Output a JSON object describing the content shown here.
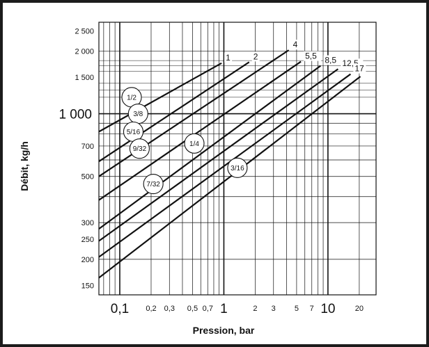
{
  "chart_data": {
    "type": "line",
    "xlabel": "Pression, bar",
    "ylabel": "Débit, kg/h",
    "x_scale": "log",
    "y_scale": "log",
    "xlim": [
      0.063,
      29
    ],
    "ylim": [
      135,
      2750
    ],
    "grid": true,
    "x_ticks": [
      {
        "value": 0.1,
        "label": "0,1",
        "major": true
      },
      {
        "value": 0.2,
        "label": "0,2",
        "major": false
      },
      {
        "value": 0.3,
        "label": "0,3",
        "major": false
      },
      {
        "value": 0.5,
        "label": "0,5",
        "major": false
      },
      {
        "value": 0.7,
        "label": "0,7",
        "major": false
      },
      {
        "value": 1,
        "label": "1",
        "major": true
      },
      {
        "value": 2,
        "label": "2",
        "major": false
      },
      {
        "value": 3,
        "label": "3",
        "major": false
      },
      {
        "value": 5,
        "label": "5",
        "major": false
      },
      {
        "value": 7,
        "label": "7",
        "major": false
      },
      {
        "value": 10,
        "label": "10",
        "major": true
      },
      {
        "value": 20,
        "label": "20",
        "major": false
      }
    ],
    "y_ticks": [
      {
        "value": 150,
        "label": "150",
        "major": false
      },
      {
        "value": 200,
        "label": "200",
        "major": false
      },
      {
        "value": 250,
        "label": "250",
        "major": false
      },
      {
        "value": 300,
        "label": "300",
        "major": false
      },
      {
        "value": 500,
        "label": "500",
        "major": false
      },
      {
        "value": 700,
        "label": "700",
        "major": false
      },
      {
        "value": 1000,
        "label": "1 000",
        "major": true
      },
      {
        "value": 1500,
        "label": "1 500",
        "major": false
      },
      {
        "value": 2000,
        "label": "2 000",
        "major": false
      },
      {
        "value": 2500,
        "label": "2 500",
        "major": false
      }
    ],
    "series": [
      {
        "name": "1",
        "points": [
          [
            0.063,
            820
          ],
          [
            0.95,
            1750
          ]
        ]
      },
      {
        "name": "2",
        "points": [
          [
            0.063,
            590
          ],
          [
            1.75,
            1770
          ]
        ]
      },
      {
        "name": "4",
        "points": [
          [
            0.063,
            500
          ],
          [
            4.2,
            2020
          ]
        ]
      },
      {
        "name": "5,5",
        "points": [
          [
            0.063,
            385
          ],
          [
            5.5,
            1780
          ]
        ]
      },
      {
        "name": "8,5",
        "points": [
          [
            0.063,
            280
          ],
          [
            8.5,
            1700
          ]
        ]
      },
      {
        "name": "12,5",
        "points": [
          [
            0.063,
            245
          ],
          [
            12.5,
            1640
          ]
        ]
      },
      {
        "name": "17",
        "points": [
          [
            0.063,
            205
          ],
          [
            16.5,
            1550
          ]
        ]
      },
      {
        "name": "",
        "points": [
          [
            0.063,
            163
          ],
          [
            20.5,
            1510
          ]
        ]
      }
    ],
    "annotations": [
      {
        "text": "1/2",
        "x": 0.13,
        "y": 1200
      },
      {
        "text": "3/8",
        "x": 0.15,
        "y": 1000
      },
      {
        "text": "5/16",
        "x": 0.135,
        "y": 820
      },
      {
        "text": "9/32",
        "x": 0.155,
        "y": 680
      },
      {
        "text": "1/4",
        "x": 0.52,
        "y": 720
      },
      {
        "text": "7/32",
        "x": 0.21,
        "y": 460
      },
      {
        "text": "3/16",
        "x": 1.35,
        "y": 550
      }
    ]
  }
}
